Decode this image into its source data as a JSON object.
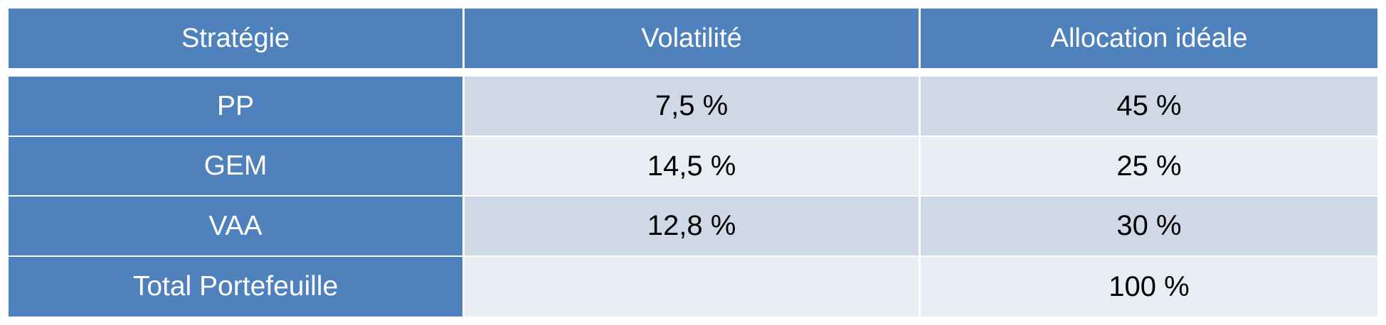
{
  "table": {
    "header": [
      "Stratégie",
      "Volatilité",
      "Allocation idéale"
    ],
    "rows": [
      [
        "PP",
        "7,5 %",
        "45 %"
      ],
      [
        "GEM",
        "14,5 %",
        "25 %"
      ],
      [
        "VAA",
        "12,8 %",
        "30 %"
      ]
    ],
    "total": {
      "label": "Total Portefeuille",
      "allocation": "100 %"
    }
  }
}
